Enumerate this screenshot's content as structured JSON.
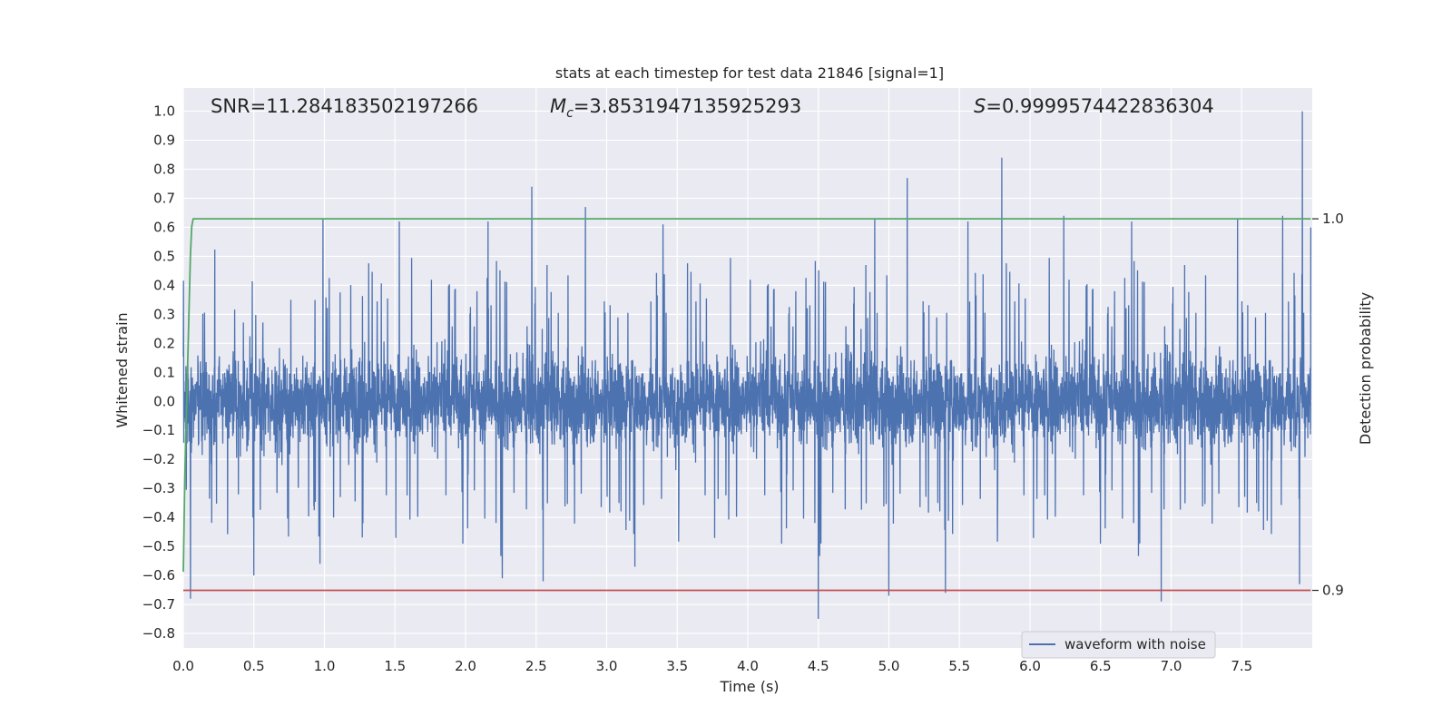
{
  "chart_data": {
    "type": "line",
    "title": "stats at each timestep for test data 21846 [signal=1]",
    "xlabel": "Time (s)",
    "ylabel": "Whitened strain",
    "ylabel_right": "Detection probability",
    "xlim": [
      0.0,
      8.0
    ],
    "ylim": [
      -0.85,
      1.08
    ],
    "ylim_right": [
      0.8845,
      1.0352
    ],
    "x_ticks": [
      0.0,
      0.5,
      1.0,
      1.5,
      2.0,
      2.5,
      3.0,
      3.5,
      4.0,
      4.5,
      5.0,
      5.5,
      6.0,
      6.5,
      7.0,
      7.5
    ],
    "x_tick_labels": [
      "0.0",
      "0.5",
      "1.0",
      "1.5",
      "2.0",
      "2.5",
      "3.0",
      "3.5",
      "4.0",
      "4.5",
      "5.0",
      "5.5",
      "6.0",
      "6.5",
      "7.0",
      "7.5"
    ],
    "y_ticks": [
      1.0,
      0.9,
      0.8,
      0.7,
      0.6,
      0.5,
      0.4,
      0.3,
      0.2,
      0.1,
      0.0,
      -0.1,
      -0.2,
      -0.3,
      -0.4,
      -0.5,
      -0.6,
      -0.7,
      -0.8
    ],
    "y_tick_labels": [
      "1.0",
      "0.9",
      "0.8",
      "0.7",
      "0.6",
      "0.5",
      "0.4",
      "0.3",
      "0.2",
      "0.1",
      "0.0",
      "−0.1",
      "−0.2",
      "−0.3",
      "−0.4",
      "−0.5",
      "−0.6",
      "−0.7",
      "−0.8"
    ],
    "y_right_ticks": [
      1.0,
      0.9
    ],
    "y_right_tick_labels": [
      "1.0",
      "0.9"
    ],
    "grid": true,
    "legend": {
      "placement": "lower-right",
      "entries": [
        "waveform with noise"
      ]
    },
    "annotations": {
      "snr": "SNR=11.284183502197266",
      "mc_symbol": "M",
      "mc_sub": "c",
      "mc_value": "=3.8531947135925293",
      "s_symbol": "S",
      "s_value": "=0.9999574422836304"
    },
    "series": [
      {
        "name": "waveform with noise",
        "axis": "left",
        "color": "#4c72b0",
        "kind": "noise",
        "x_range": [
          0.0,
          7.99
        ],
        "typical_range": [
          -0.35,
          0.35
        ],
        "extremes": {
          "max": [
            7.93,
            1.0
          ],
          "min": [
            4.5,
            -0.75
          ]
        },
        "peaks": [
          [
            2.47,
            0.74
          ],
          [
            5.8,
            0.84
          ],
          [
            5.13,
            0.77
          ],
          [
            2.85,
            0.67
          ],
          [
            0.99,
            0.63
          ],
          [
            1.53,
            0.62
          ],
          [
            2.16,
            0.62
          ],
          [
            3.4,
            0.61
          ],
          [
            4.9,
            0.63
          ],
          [
            7.79,
            0.64
          ],
          [
            7.99,
            0.6
          ],
          [
            7.47,
            0.63
          ],
          [
            6.24,
            0.64
          ],
          [
            6.72,
            0.62
          ],
          [
            5.56,
            0.62
          ]
        ],
        "troughs": [
          [
            4.5,
            -0.75
          ],
          [
            6.93,
            -0.69
          ],
          [
            5.0,
            -0.67
          ],
          [
            2.55,
            -0.62
          ],
          [
            2.26,
            -0.61
          ],
          [
            7.91,
            -0.63
          ],
          [
            0.05,
            -0.68
          ],
          [
            0.5,
            -0.6
          ],
          [
            3.2,
            -0.57
          ],
          [
            5.4,
            -0.66
          ]
        ]
      },
      {
        "name": "",
        "axis": "right",
        "color": "#55a868",
        "kind": "line",
        "x": [
          0.0,
          0.01,
          0.03,
          0.05,
          0.06,
          0.07,
          0.1,
          7.99
        ],
        "y": [
          0.905,
          0.93,
          0.96,
          0.99,
          0.998,
          1.0,
          1.0,
          1.0
        ]
      },
      {
        "name": "",
        "axis": "right",
        "color": "#c44e52",
        "kind": "line",
        "x": [
          0.0,
          7.99
        ],
        "y": [
          0.9,
          0.9
        ]
      }
    ]
  }
}
